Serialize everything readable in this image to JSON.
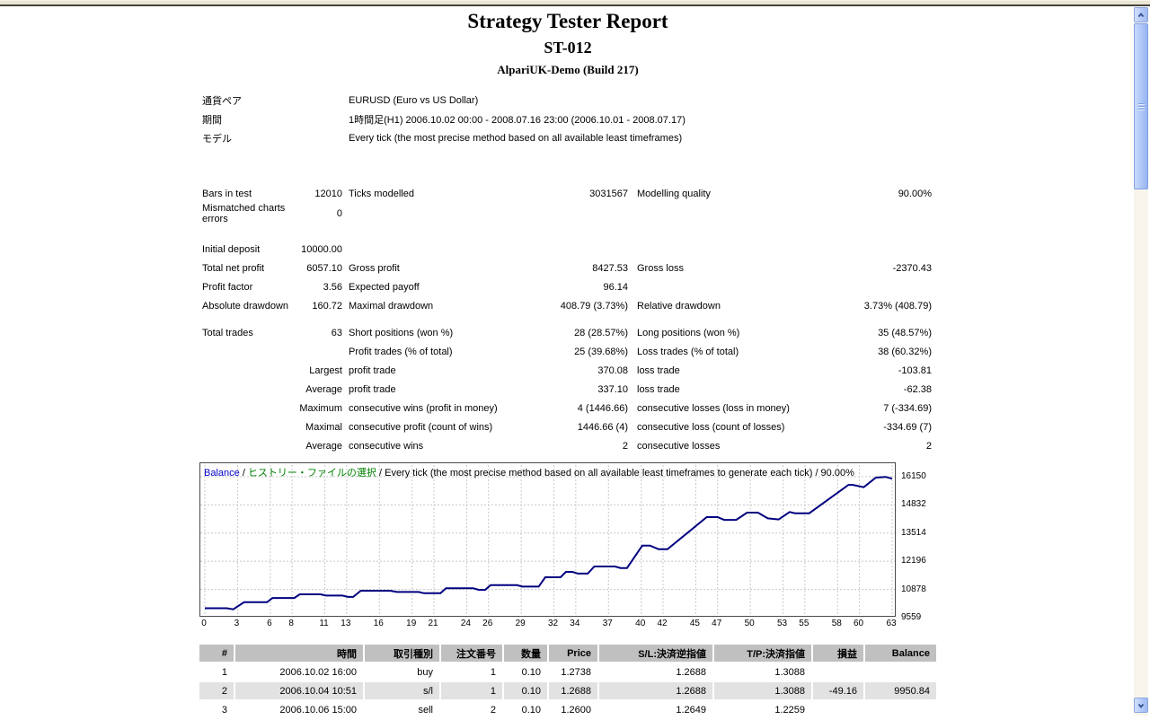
{
  "report": {
    "title": "Strategy Tester Report",
    "subtitle": "ST-012",
    "server": "AlpariUK-Demo (Build 217)"
  },
  "info_rows": [
    {
      "label": "通貨ペア",
      "value": "EURUSD (Euro vs US Dollar)"
    },
    {
      "label": "期間",
      "value": "1時間足(H1) 2006.10.02 00:00 - 2008.07.16 23:00 (2006.10.01 - 2008.07.17)"
    },
    {
      "label": "モデル",
      "value": "Every tick (the most precise method based on all available least timeframes)"
    }
  ],
  "stats_rows": [
    {
      "cells": [
        "Bars in test",
        "12010",
        "Ticks modelled",
        "3031567",
        "Modelling quality",
        "90.00%"
      ]
    },
    {
      "cells": [
        "Mismatched charts errors",
        "0",
        "",
        "",
        "",
        ""
      ]
    },
    {
      "gap": "big"
    },
    {
      "cells": [
        "Initial deposit",
        "10000.00",
        "",
        "",
        "",
        ""
      ]
    },
    {
      "cells": [
        "Total net profit",
        "6057.10",
        "Gross profit",
        "8427.53",
        "Gross loss",
        "-2370.43"
      ]
    },
    {
      "cells": [
        "Profit factor",
        "3.56",
        "Expected payoff",
        "96.14",
        "",
        ""
      ]
    },
    {
      "cells": [
        "Absolute drawdown",
        "160.72",
        "Maximal drawdown",
        "408.79 (3.73%)",
        "Relative drawdown",
        "3.73% (408.79)"
      ]
    },
    {
      "gap": "small"
    },
    {
      "cells": [
        "Total trades",
        "63",
        "Short positions (won %)",
        "28 (28.57%)",
        "Long positions (won %)",
        "35 (48.57%)"
      ]
    },
    {
      "cells": [
        "",
        "",
        "Profit trades (% of total)",
        "25 (39.68%)",
        "Loss trades (% of total)",
        "38 (60.32%)"
      ]
    },
    {
      "cells": [
        "",
        "Largest",
        "profit trade",
        "370.08",
        "loss trade",
        "-103.81"
      ]
    },
    {
      "cells": [
        "",
        "Average",
        "profit trade",
        "337.10",
        "loss trade",
        "-62.38"
      ]
    },
    {
      "cells": [
        "",
        "Maximum",
        "consecutive wins (profit in money)",
        "4 (1446.66)",
        "consecutive losses (loss in money)",
        "7 (-334.69)"
      ]
    },
    {
      "cells": [
        "",
        "Maximal",
        "consecutive profit (count of wins)",
        "1446.66 (4)",
        "consecutive loss (count of losses)",
        "-334.69 (7)"
      ]
    },
    {
      "cells": [
        "",
        "Average",
        "consecutive wins",
        "2",
        "consecutive losses",
        "2"
      ]
    }
  ],
  "chart_data": {
    "type": "line",
    "caption_segments": [
      {
        "text": "Balance",
        "color": "#0000c8"
      },
      {
        "text": " / ",
        "color": "#000000"
      },
      {
        "text": "ヒストリー・ファイルの選択",
        "color": "#008000"
      },
      {
        "text": " / Every tick (the most precise method based on all available least timeframes to generate each tick) / 90.00%",
        "color": "#000000"
      }
    ],
    "xlabel": "",
    "ylabel": "",
    "x_ticks": [
      0,
      3,
      6,
      8,
      11,
      13,
      16,
      19,
      21,
      24,
      26,
      29,
      32,
      34,
      37,
      40,
      42,
      45,
      47,
      50,
      53,
      55,
      58,
      60,
      63
    ],
    "y_ticks": [
      16150,
      14832,
      13514,
      12196,
      10878,
      9559
    ],
    "xlim": [
      0,
      63
    ],
    "ylim": [
      9559,
      16150
    ],
    "grid": true,
    "series": [
      {
        "name": "Balance",
        "color": "#000080",
        "points": [
          [
            0,
            10000
          ],
          [
            2,
            10000
          ],
          [
            2.6,
            9951
          ],
          [
            3.6,
            10280
          ],
          [
            5.7,
            10280
          ],
          [
            6.2,
            10480
          ],
          [
            8.2,
            10480
          ],
          [
            8.7,
            10650
          ],
          [
            10.6,
            10650
          ],
          [
            11.1,
            10590
          ],
          [
            12.6,
            10590
          ],
          [
            13.1,
            10530
          ],
          [
            13.6,
            10530
          ],
          [
            14.3,
            10820
          ],
          [
            17,
            10820
          ],
          [
            17.6,
            10760
          ],
          [
            19.6,
            10760
          ],
          [
            20.1,
            10700
          ],
          [
            21.6,
            10700
          ],
          [
            22.1,
            10930
          ],
          [
            24.6,
            10930
          ],
          [
            25.1,
            10860
          ],
          [
            25.7,
            10860
          ],
          [
            26.2,
            11080
          ],
          [
            28.6,
            11080
          ],
          [
            29.1,
            11010
          ],
          [
            30.6,
            11010
          ],
          [
            31.2,
            11450
          ],
          [
            32.6,
            11450
          ],
          [
            33.1,
            11700
          ],
          [
            33.7,
            11700
          ],
          [
            34.2,
            11620
          ],
          [
            35.1,
            11620
          ],
          [
            35.7,
            11950
          ],
          [
            37.6,
            11950
          ],
          [
            38.1,
            11880
          ],
          [
            38.7,
            11880
          ],
          [
            40.1,
            12930
          ],
          [
            40.8,
            12930
          ],
          [
            41.6,
            12760
          ],
          [
            42.4,
            12760
          ],
          [
            46,
            14260
          ],
          [
            47,
            14260
          ],
          [
            47.6,
            14130
          ],
          [
            48.7,
            14130
          ],
          [
            49.7,
            14470
          ],
          [
            50.7,
            14470
          ],
          [
            51.6,
            14200
          ],
          [
            52.6,
            14150
          ],
          [
            53.6,
            14500
          ],
          [
            54.1,
            14440
          ],
          [
            55.4,
            14440
          ],
          [
            59,
            15770
          ],
          [
            59.4,
            15770
          ],
          [
            60.4,
            15660
          ],
          [
            61.5,
            16110
          ],
          [
            62.4,
            16140
          ],
          [
            63,
            16057
          ]
        ]
      }
    ]
  },
  "trades_table": {
    "headers": [
      "#",
      "時間",
      "取引種別",
      "注文番号",
      "数量",
      "Price",
      "S/L:決済逆指値",
      "T/P:決済指値",
      "損益",
      "Balance"
    ],
    "rows": [
      [
        "1",
        "2006.10.02 16:00",
        "buy",
        "1",
        "0.10",
        "1.2738",
        "1.2688",
        "1.3088",
        "",
        ""
      ],
      [
        "2",
        "2006.10.04 10:51",
        "s/l",
        "1",
        "0.10",
        "1.2688",
        "1.2688",
        "1.3088",
        "-49.16",
        "9950.84"
      ],
      [
        "3",
        "2006.10.06 15:00",
        "sell",
        "2",
        "0.10",
        "1.2600",
        "1.2649",
        "1.2259",
        "",
        ""
      ]
    ]
  }
}
